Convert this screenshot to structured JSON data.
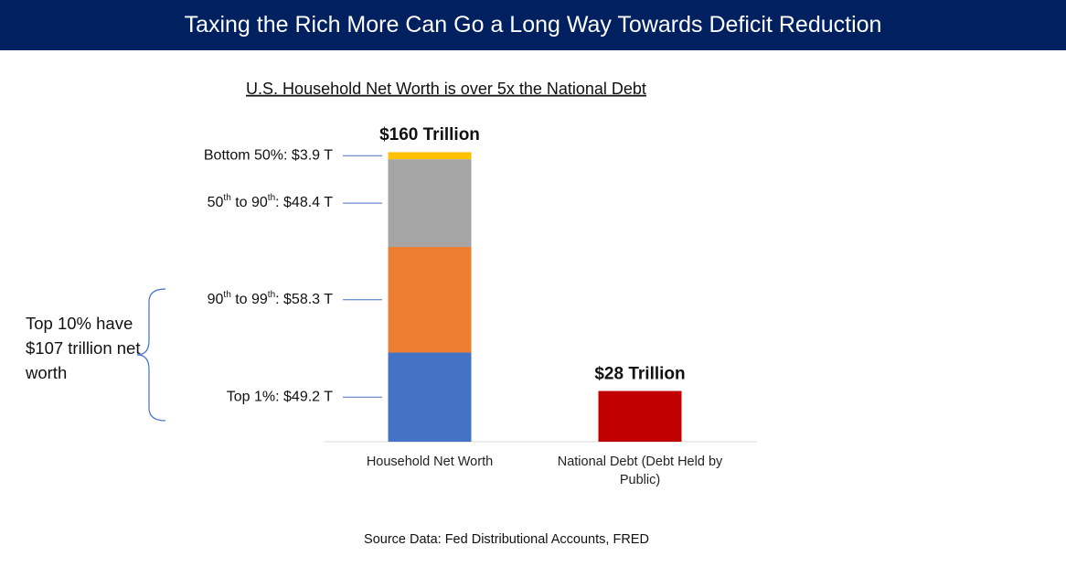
{
  "header": {
    "title": "Taxing the Rich More Can Go a Long Way Towards Deficit Reduction"
  },
  "chart_data": {
    "type": "stacked_bar",
    "title": "U.S. Household Net Worth is over 5x the National Debt",
    "categories": [
      "Household Net Worth",
      "National Debt (Debt Held by Public)"
    ],
    "series": [
      {
        "name": "Top 1%",
        "color": "#4472c4",
        "values": [
          49.2,
          null
        ],
        "value_labels": [
          "Top 1%: $49.2 T",
          null
        ]
      },
      {
        "name": "90th to 99th",
        "color": "#ed7d31",
        "values": [
          58.3,
          null
        ],
        "value_labels": [
          "90th to 99th: $58.3 T",
          null
        ]
      },
      {
        "name": "50th to 90th",
        "color": "#a5a5a5",
        "values": [
          48.4,
          null
        ],
        "value_labels": [
          "50th to 90th: $48.4 T",
          null
        ]
      },
      {
        "name": "Bottom 50%",
        "color": "#ffc000",
        "values": [
          3.9,
          null
        ],
        "value_labels": [
          "Bottom 50%: $3.9 T",
          null
        ]
      },
      {
        "name": "National Debt",
        "color": "#c00000",
        "values": [
          null,
          28
        ],
        "value_labels": [
          null,
          null
        ]
      }
    ],
    "totals": [
      {
        "value": 160,
        "label": "$160 Trillion"
      },
      {
        "value": 28,
        "label": "$28 Trillion"
      }
    ],
    "ylim": [
      0,
      160
    ],
    "annotation": "Top 10% have $107 trillion net worth",
    "source": "Source Data:  Fed Distributional Accounts, FRED"
  }
}
